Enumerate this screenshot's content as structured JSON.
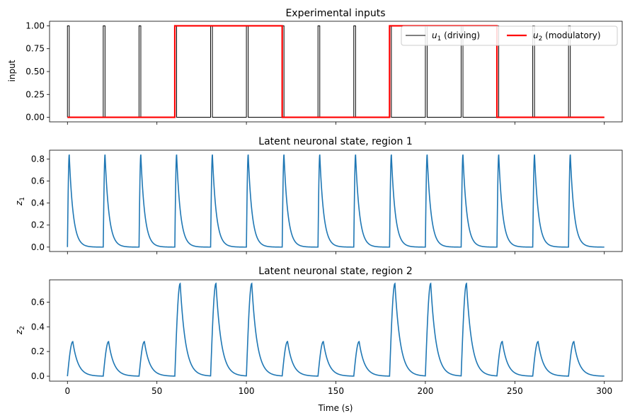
{
  "colors": {
    "driving": "#000000",
    "modulatory": "#ff0000",
    "state": "#1f77b4"
  },
  "chart_data": [
    {
      "type": "line",
      "title": "Experimental inputs",
      "ylabel": "input",
      "xlabel": "",
      "xlim": [
        -10,
        310
      ],
      "ylim": [
        -0.05,
        1.05
      ],
      "yticks": [
        0.0,
        0.25,
        0.5,
        0.75,
        1.0
      ],
      "ytick_labels": [
        "0.00",
        "0.25",
        "0.50",
        "0.75",
        "1.00"
      ],
      "xticks": [
        0,
        50,
        100,
        150,
        200,
        250,
        300
      ],
      "legend": {
        "placement": "top-right",
        "entries": [
          "u_1 (driving)",
          "u_2 (modulatory)"
        ],
        "labels": [
          {
            "sym": "u",
            "sub": "1",
            "text": " (driving)"
          },
          {
            "sym": "u",
            "sub": "2",
            "text": " (modulatory)"
          }
        ]
      },
      "series": [
        {
          "name": "u_1 (driving)",
          "kind": "pulses",
          "baseline": 0,
          "level": 1,
          "onsets": [
            0,
            20,
            40,
            60,
            80,
            100,
            120,
            140,
            160,
            180,
            200,
            220,
            240,
            260,
            280
          ],
          "duration": 1,
          "x_range": [
            0,
            300
          ]
        },
        {
          "name": "u_2 (modulatory)",
          "kind": "blocks",
          "baseline": 0,
          "level": 1,
          "blocks": [
            [
              60,
              120
            ],
            [
              180,
              240
            ]
          ],
          "x_range": [
            0,
            300
          ]
        }
      ]
    },
    {
      "type": "line",
      "title": "Latent neuronal state, region 1",
      "ylabel": "z_1",
      "ylabel_parts": {
        "sym": "z",
        "sub": "1"
      },
      "xlabel": "",
      "xlim": [
        -10,
        310
      ],
      "ylim": [
        -0.04,
        0.88
      ],
      "yticks": [
        0.0,
        0.2,
        0.4,
        0.6,
        0.8
      ],
      "ytick_labels": [
        "0.0",
        "0.2",
        "0.4",
        "0.6",
        "0.8"
      ],
      "xticks": [
        0,
        50,
        100,
        150,
        200,
        250,
        300
      ],
      "series": [
        {
          "name": "",
          "kind": "response",
          "onsets": [
            0,
            20,
            40,
            60,
            80,
            100,
            120,
            140,
            160,
            180,
            200,
            220,
            240,
            260,
            280
          ],
          "peak_time": 1,
          "peaks": [
            0.84,
            0.84,
            0.84,
            0.84,
            0.84,
            0.84,
            0.84,
            0.84,
            0.84,
            0.84,
            0.84,
            0.84,
            0.84,
            0.84,
            0.84
          ],
          "decay_tau": 2.2,
          "x_range": [
            0,
            300
          ]
        }
      ]
    },
    {
      "type": "line",
      "title": "Latent neuronal state, region 2",
      "ylabel": "z_2",
      "ylabel_parts": {
        "sym": "z",
        "sub": "2"
      },
      "xlabel": "Time (s)",
      "xlim": [
        -10,
        310
      ],
      "ylim": [
        -0.04,
        0.78
      ],
      "yticks": [
        0.0,
        0.2,
        0.4,
        0.6
      ],
      "ytick_labels": [
        "0.0",
        "0.2",
        "0.4",
        "0.6"
      ],
      "xticks": [
        0,
        50,
        100,
        150,
        200,
        250,
        300
      ],
      "xtick_labels": [
        "0",
        "50",
        "100",
        "150",
        "200",
        "250",
        "300"
      ],
      "series": [
        {
          "name": "",
          "kind": "response",
          "onsets": [
            0,
            20,
            40,
            60,
            80,
            100,
            120,
            140,
            160,
            180,
            200,
            220,
            240,
            260,
            280
          ],
          "peak_time": 3,
          "peaks": [
            0.28,
            0.28,
            0.28,
            0.75,
            0.75,
            0.75,
            0.28,
            0.28,
            0.28,
            0.75,
            0.75,
            0.75,
            0.28,
            0.28,
            0.28
          ],
          "decay_tau": 3.0,
          "x_range": [
            0,
            300
          ]
        }
      ]
    }
  ]
}
